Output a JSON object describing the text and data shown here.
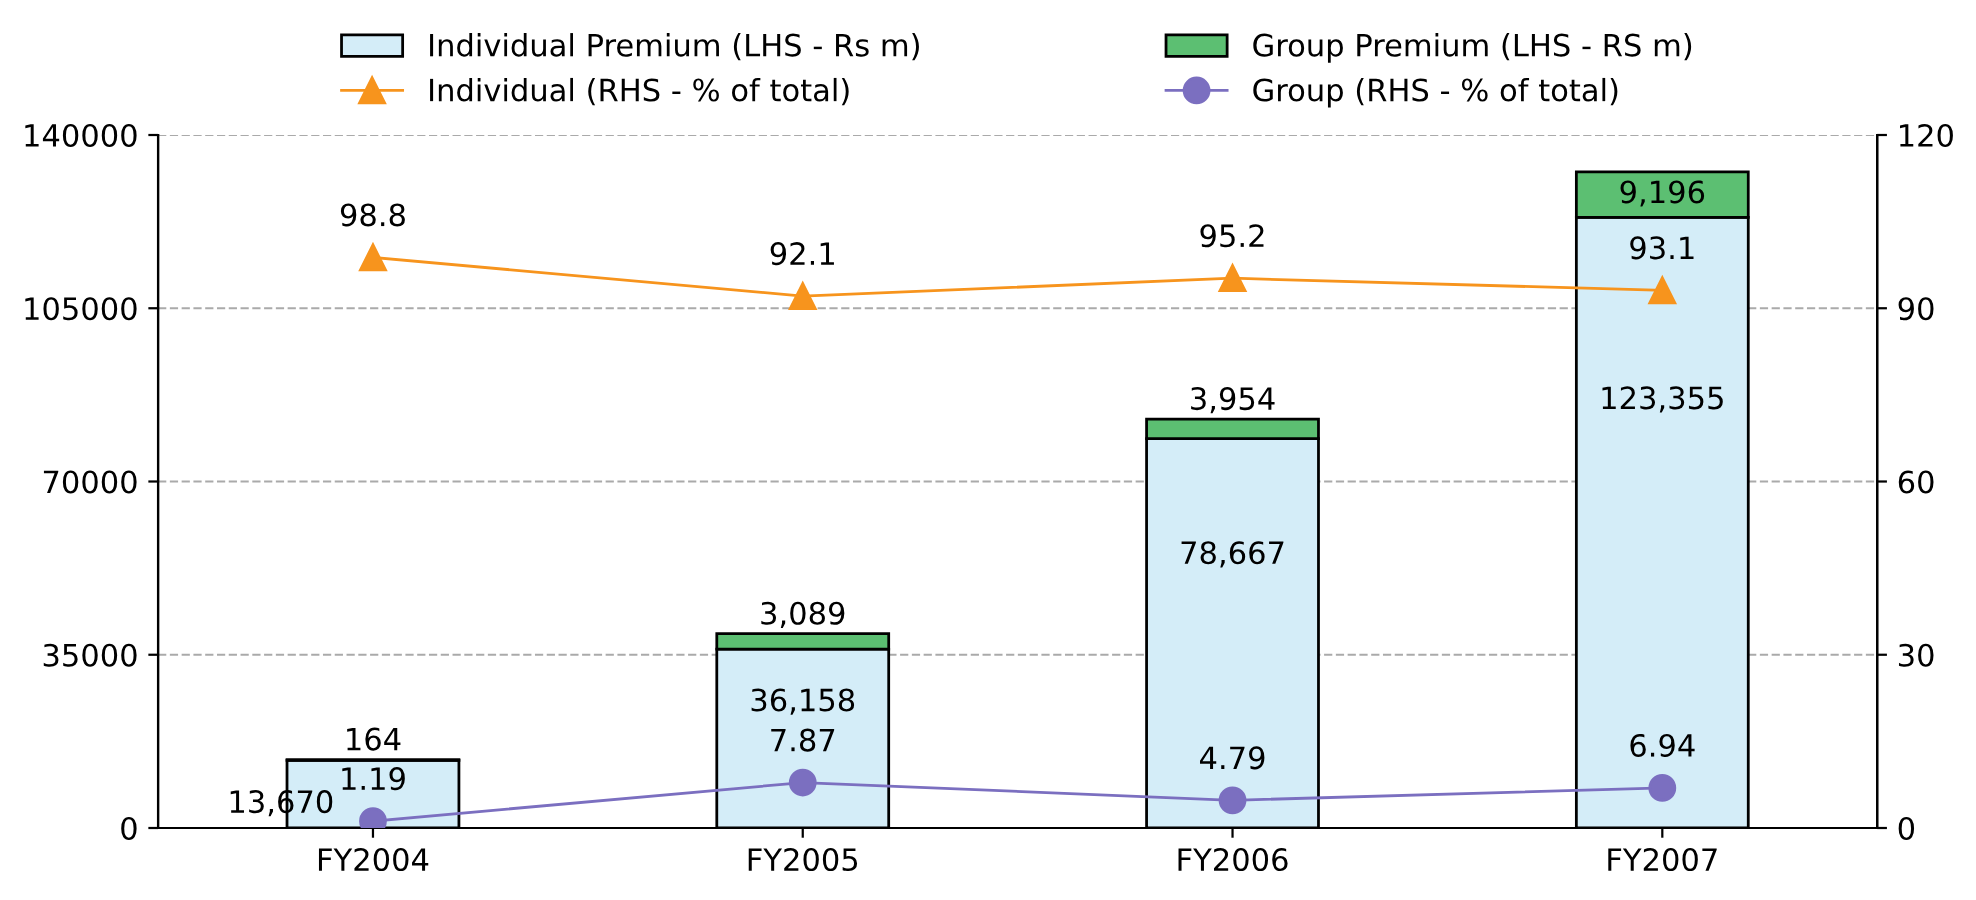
{
  "chart_data": {
    "type": "bar",
    "stacked": true,
    "categories": [
      "FY2004",
      "FY2005",
      "FY2006",
      "FY2007"
    ],
    "series": [
      {
        "name": "Individual Premium (LHS - Rs m)",
        "color": "#d4edf8",
        "values": [
          13670,
          36158,
          78667,
          123355
        ],
        "value_labels": [
          "13,670",
          "36,158",
          "78,667",
          "123,355"
        ]
      },
      {
        "name": "Group Premium (LHS - RS m)",
        "color": "#5cbf72",
        "values": [
          164,
          3089,
          3954,
          9196
        ],
        "value_labels": [
          "164",
          "3,089",
          "3,954",
          "9,196"
        ]
      },
      {
        "name": "Individual (RHS - % of total)",
        "type": "line",
        "axis": "y2",
        "color": "#f7941d",
        "marker": "triangle",
        "values": [
          98.8,
          92.1,
          95.2,
          93.1
        ],
        "value_labels": [
          "98.8",
          "92.1",
          "95.2",
          "93.1"
        ]
      },
      {
        "name": "Group (RHS - % of total)",
        "type": "line",
        "axis": "y2",
        "color": "#7b6fc0",
        "marker": "circle",
        "values": [
          1.19,
          7.87,
          4.79,
          6.94
        ],
        "value_labels": [
          "1.19",
          "7.87",
          "4.79",
          "6.94"
        ]
      }
    ],
    "ylim": [
      0,
      140000
    ],
    "yticks": [
      0,
      35000,
      70000,
      105000,
      140000
    ],
    "y2lim": [
      0,
      120
    ],
    "y2ticks": [
      0,
      30,
      60,
      90,
      120
    ],
    "grid": "y",
    "legend": "top"
  }
}
